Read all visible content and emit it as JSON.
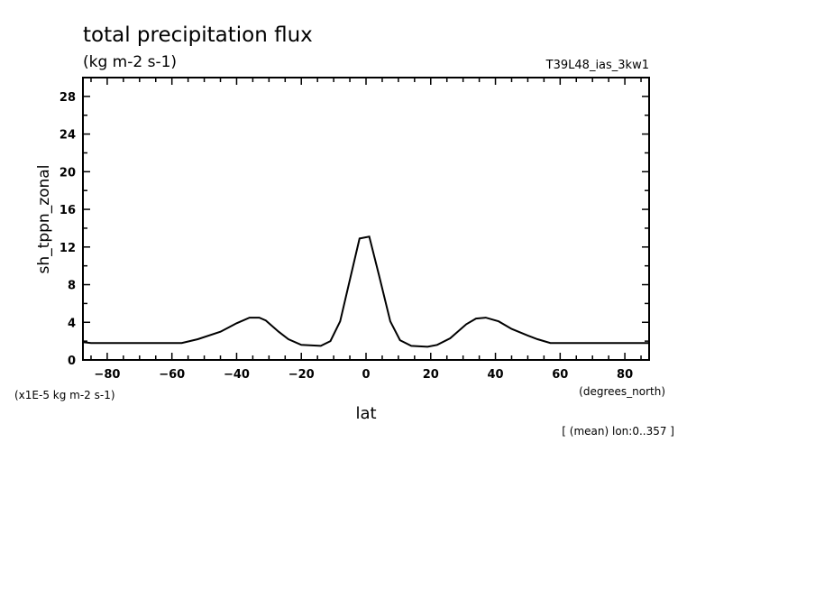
{
  "chart_data": {
    "type": "line",
    "title": "total precipitation flux",
    "units": "(kg m-2 s-1)",
    "dataset_label": "T39L48_ias_3kw1",
    "xlabel": "lat",
    "xunits": "(degrees_north)",
    "ylabel": "sh_tppn_zonal",
    "yscale_label": "(x1E-5 kg m-2 s-1)",
    "footnote": "[ (mean) lon:0..357 ]",
    "xlim": [
      -87.5,
      87.5
    ],
    "ylim": [
      0,
      30
    ],
    "xticks": [
      -80,
      -60,
      -40,
      -20,
      0,
      20,
      40,
      60,
      80
    ],
    "yticks": [
      0,
      4,
      8,
      12,
      16,
      20,
      24,
      28
    ],
    "grid": false,
    "series": [
      {
        "name": "sh_tppn_zonal",
        "x": [
          -87.5,
          -85,
          -57,
          -52,
          -45,
          -40,
          -36,
          -33,
          -31,
          -27,
          -24,
          -20,
          -14,
          -11,
          -8,
          -2,
          1,
          4,
          7.5,
          10.5,
          14,
          19,
          22,
          26,
          31,
          34,
          37,
          41,
          45,
          50,
          53,
          57,
          87.5
        ],
        "y": [
          1.9,
          1.8,
          1.8,
          2.2,
          3.0,
          3.9,
          4.5,
          4.5,
          4.2,
          3.0,
          2.2,
          1.6,
          1.5,
          2.0,
          4.1,
          12.9,
          13.1,
          9.0,
          4.1,
          2.1,
          1.5,
          1.4,
          1.6,
          2.3,
          3.8,
          4.4,
          4.5,
          4.1,
          3.3,
          2.6,
          2.2,
          1.8,
          1.8
        ]
      }
    ]
  }
}
